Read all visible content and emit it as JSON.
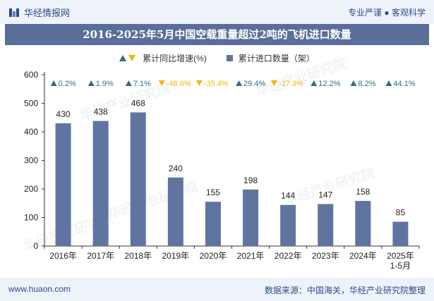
{
  "header": {
    "brand": "华经情报网",
    "slogan": "专业严谨 ● 客观科学"
  },
  "footer": {
    "url": "www.huaon.com",
    "source": "数据来源：中国海关，华经产业研究院整理"
  },
  "watermark": "华经产业研究院",
  "colors": {
    "bar": "#6074a0",
    "up": "#2f6f7e",
    "down": "#f0b800",
    "title_bg": "#5a6e9a"
  },
  "chart_data": {
    "type": "bar",
    "title": "2016-2025年5月中国空载重量超过2吨的飞机进口数量",
    "legend": {
      "growth": "累计同比增速(%)",
      "count": "累计进口数量（架）"
    },
    "categories": [
      "2016年",
      "2017年",
      "2018年",
      "2019年",
      "2020年",
      "2021年",
      "2022年",
      "2023年",
      "2024年",
      "2025年\n1-5月"
    ],
    "values": [
      430,
      438,
      468,
      240,
      155,
      198,
      144,
      147,
      158,
      85
    ],
    "growth": [
      0.2,
      1.9,
      7.1,
      -48.6,
      -35.4,
      29.4,
      -27.3,
      12.2,
      8.2,
      44.1
    ],
    "growth_labels": [
      "0.2%",
      "1.9%",
      "7.1%",
      "-48.6%",
      "-35.4%",
      "29.4%",
      "-27.3%",
      "12.2%",
      "8.2%",
      "44.1%"
    ],
    "y_ticks": [
      0,
      100,
      200,
      300,
      400,
      500,
      600
    ],
    "ylim": [
      0,
      600
    ]
  }
}
